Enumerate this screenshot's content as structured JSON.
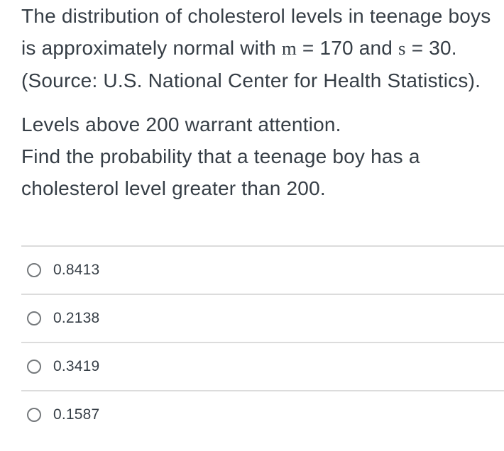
{
  "question": {
    "para1": {
      "line1": "The distribution of cholesterol levels in teenage boys",
      "line2_seg1": "is approximately normal with ",
      "line2_var1": "m",
      "line2_seg2": " = 170 and ",
      "line2_var2": "s",
      "line2_seg3": " = 30.",
      "line3": "(Source: U.S. National Center for Health Statistics)."
    },
    "para2": {
      "line1": "Levels above 200 warrant attention.",
      "line2": "Find the probability that a teenage boy has a",
      "line3": "cholesterol level greater than 200."
    }
  },
  "options": [
    {
      "label": "0.8413",
      "selected": false
    },
    {
      "label": "0.2138",
      "selected": false
    },
    {
      "label": "0.3419",
      "selected": false
    },
    {
      "label": "0.1587",
      "selected": false
    }
  ],
  "colors": {
    "text": "#363e46",
    "divider": "#dcdcdc",
    "radio_border": "#75797c",
    "background": "#ffffff"
  }
}
